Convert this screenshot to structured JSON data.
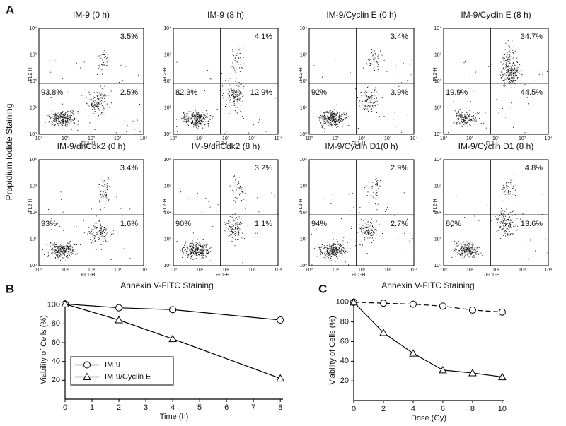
{
  "panel_a": {
    "label": "A",
    "y_label": "Propidium  Iodide  Staining",
    "x_label": "Annexin V-FITC Staining",
    "axis_ticks": [
      "10⁰",
      "10¹",
      "10²",
      "10³",
      "10⁴"
    ],
    "x_axis": "FL1-H",
    "y_axis": "FL2-H",
    "plots": [
      {
        "title": "IM-9 (0 h)",
        "upper_right": "3.5%",
        "lower_left": "93.8%",
        "lower_right": "2.5%"
      },
      {
        "title": "IM-9 (8 h)",
        "upper_right": "4.1%",
        "lower_left": "82.3%",
        "lower_right": "12.9%"
      },
      {
        "title": "IM-9/Cyclin E (0 h)",
        "upper_right": "3.4%",
        "lower_left": "92%",
        "lower_right": "3.9%"
      },
      {
        "title": "IM-9/Cyclin E (8 h)",
        "upper_right": "34.7%",
        "lower_left": "19.9%",
        "lower_right": "44.5%"
      },
      {
        "title": "IM-9/dnCdk2 (0 h)",
        "upper_right": "3.4%",
        "lower_left": "93%",
        "lower_right": "1.6%"
      },
      {
        "title": "IM-9/dnCdk2 (8 h)",
        "upper_right": "3.2%",
        "lower_left": "90%",
        "lower_right": "1.1%"
      },
      {
        "title": "IM-9/Cyclin D1(0 h)",
        "upper_right": "2.9%",
        "lower_left": "94%",
        "lower_right": "2.7%"
      },
      {
        "title": "IM-9/Cyclin D1 (8 h)",
        "upper_right": "4.8%",
        "lower_left": "80%",
        "lower_right": "13.6%"
      }
    ]
  },
  "chart_data": [
    {
      "type": "line",
      "panel_label": "B",
      "x_label": "Time (h)",
      "y_label": "Viability of Cells (%)",
      "x": [
        0,
        2,
        4,
        8
      ],
      "xlim": [
        0,
        8.1
      ],
      "xticks": [
        0,
        1,
        2,
        3,
        4,
        5,
        6,
        7,
        8
      ],
      "ylim": [
        0,
        105
      ],
      "yticks": [
        20,
        40,
        60,
        80,
        100
      ],
      "legend": "lower left",
      "series": [
        {
          "name": "IM-9",
          "color": "#000000",
          "marker": "circle",
          "line_style": "solid",
          "values": [
            101,
            97,
            95,
            84
          ]
        },
        {
          "name": "IM-9/Cyclin E",
          "color": "#000000",
          "marker": "triangle",
          "line_style": "solid",
          "values": [
            101,
            84,
            64,
            22
          ]
        }
      ]
    },
    {
      "type": "line",
      "panel_label": "C",
      "x_label": "Dose (Gy)",
      "y_label": "Viability of Cells (%)",
      "x": [
        0,
        2,
        4,
        6,
        8,
        10
      ],
      "xlim": [
        0,
        10.1
      ],
      "xticks": [
        0,
        2,
        4,
        6,
        8,
        10
      ],
      "ylim": [
        0,
        102
      ],
      "yticks": [
        20,
        40,
        60,
        80,
        100
      ],
      "series": [
        {
          "color": "#000000",
          "marker": "circle",
          "line_style": "dashed",
          "values": [
            100,
            99,
            98,
            96,
            92,
            90
          ]
        },
        {
          "color": "#000000",
          "marker": "triangle",
          "line_style": "solid",
          "values": [
            100,
            69,
            48,
            31,
            28,
            24
          ]
        }
      ]
    }
  ]
}
